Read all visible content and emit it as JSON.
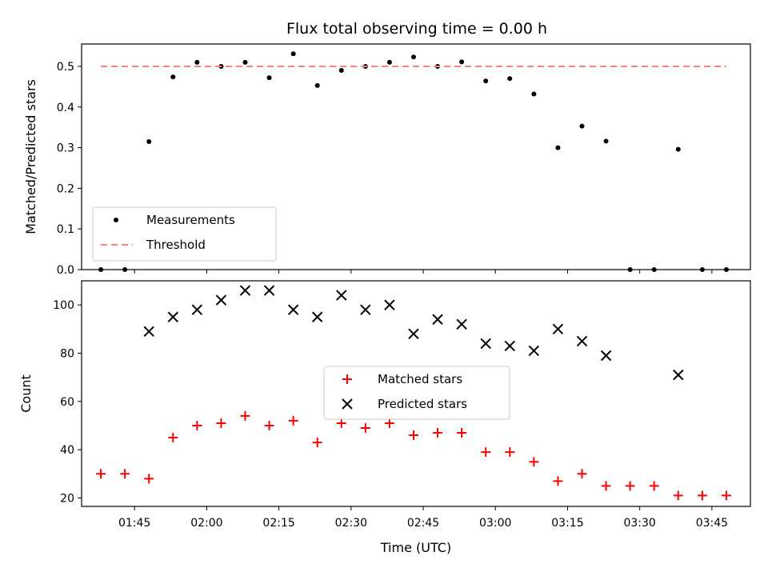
{
  "figure_title": "Flux total observing time = 0.00 h",
  "chart_data": [
    {
      "type": "scatter",
      "ylabel": "Matched/Predicted stars",
      "xlim": [
        "01:34",
        "03:53"
      ],
      "ylim": [
        0,
        0.555
      ],
      "yticks": [
        0.0,
        0.1,
        0.2,
        0.3,
        0.4,
        0.5
      ],
      "ytick_labels": [
        "0.0",
        "0.1",
        "0.2",
        "0.3",
        "0.4",
        "0.5"
      ],
      "grid": false,
      "legend_position": "lower-left",
      "series": [
        {
          "name": "Measurements",
          "marker": "dot",
          "color": "#000000",
          "x": [
            "01:38",
            "01:43",
            "01:48",
            "01:53",
            "01:58",
            "02:03",
            "02:08",
            "02:13",
            "02:18",
            "02:23",
            "02:28",
            "02:33",
            "02:38",
            "02:43",
            "02:48",
            "02:53",
            "02:58",
            "03:03",
            "03:08",
            "03:13",
            "03:18",
            "03:23",
            "03:28",
            "03:33",
            "03:38",
            "03:43",
            "03:48"
          ],
          "y": [
            0.0,
            0.0,
            0.315,
            0.474,
            0.51,
            0.5,
            0.51,
            0.472,
            0.531,
            0.453,
            0.49,
            0.5,
            0.51,
            0.523,
            0.5,
            0.511,
            0.464,
            0.47,
            0.432,
            0.3,
            0.353,
            0.316,
            0.0,
            0.0,
            0.296,
            0.0,
            0.0
          ]
        },
        {
          "name": "Threshold",
          "style": "dashed",
          "color": "#ff7f7f",
          "x": [
            "01:38",
            "03:48"
          ],
          "y": [
            0.5,
            0.5
          ]
        }
      ]
    },
    {
      "type": "scatter",
      "xlabel": "Time (UTC)",
      "ylabel": "Count",
      "xlim": [
        "01:34",
        "03:53"
      ],
      "ylim": [
        16.5,
        110
      ],
      "xticks": [
        "01:45",
        "02:00",
        "02:15",
        "02:30",
        "02:45",
        "03:00",
        "03:15",
        "03:30",
        "03:45"
      ],
      "yticks": [
        20,
        40,
        60,
        80,
        100
      ],
      "ytick_labels": [
        "20",
        "40",
        "60",
        "80",
        "100"
      ],
      "grid": false,
      "legend_position": "center",
      "series": [
        {
          "name": "Matched stars",
          "marker": "plus",
          "color": "#ff0000",
          "x": [
            "01:38",
            "01:43",
            "01:48",
            "01:53",
            "01:58",
            "02:03",
            "02:08",
            "02:13",
            "02:18",
            "02:23",
            "02:28",
            "02:33",
            "02:38",
            "02:43",
            "02:48",
            "02:53",
            "02:58",
            "03:03",
            "03:08",
            "03:13",
            "03:18",
            "03:23",
            "03:28",
            "03:33",
            "03:38",
            "03:43",
            "03:48"
          ],
          "y": [
            30,
            30,
            28,
            45,
            50,
            51,
            54,
            50,
            52,
            43,
            51,
            49,
            51,
            46,
            47,
            47,
            39,
            39,
            35,
            27,
            30,
            25,
            25,
            25,
            21,
            21,
            21
          ]
        },
        {
          "name": "Predicted stars",
          "marker": "x",
          "color": "#000000",
          "x": [
            "01:48",
            "01:53",
            "01:58",
            "02:03",
            "02:08",
            "02:13",
            "02:18",
            "02:23",
            "02:28",
            "02:33",
            "02:38",
            "02:43",
            "02:48",
            "02:53",
            "02:58",
            "03:03",
            "03:08",
            "03:13",
            "03:18",
            "03:23",
            "03:38"
          ],
          "y": [
            89,
            95,
            98,
            102,
            106,
            106,
            98,
            95,
            104,
            98,
            100,
            88,
            94,
            92,
            84,
            83,
            81,
            90,
            85,
            79,
            71
          ]
        }
      ]
    }
  ]
}
